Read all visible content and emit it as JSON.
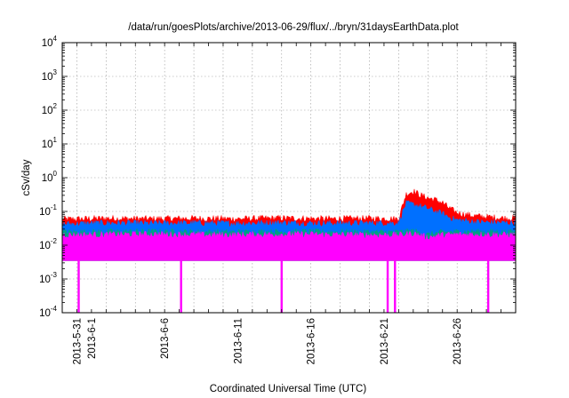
{
  "chart_data": {
    "type": "area",
    "title": "/data/run/goesPlots/archive/2013-06-29/flux/../bryn/31daysEarthData.plot",
    "xlabel": "Coordinated Universal Time (UTC)",
    "ylabel": "cSv/day",
    "y_scale": "log",
    "ylim": [
      0.0001,
      10000
    ],
    "xlim": [
      "2013-05-30",
      "2013-06-30"
    ],
    "grid": true,
    "legend": "none",
    "x_ticks": [
      {
        "date": "2013-05-31",
        "label": "2013-5-31"
      },
      {
        "date": "2013-06-01",
        "label": "2013-6-1"
      },
      {
        "date": "2013-06-06",
        "label": "2013-6-6"
      },
      {
        "date": "2013-06-11",
        "label": "2013-6-11"
      },
      {
        "date": "2013-06-16",
        "label": "2013-6-16"
      },
      {
        "date": "2013-06-21",
        "label": "2013-6-21"
      },
      {
        "date": "2013-06-26",
        "label": "2013-6-26"
      }
    ],
    "y_ticks": [
      {
        "value": 0.0001,
        "base": "10",
        "exp": "-4"
      },
      {
        "value": 0.001,
        "base": "10",
        "exp": "-3"
      },
      {
        "value": 0.01,
        "base": "10",
        "exp": "-2"
      },
      {
        "value": 0.1,
        "base": "10",
        "exp": "-1"
      },
      {
        "value": 1,
        "base": "10",
        "exp": "0"
      },
      {
        "value": 10,
        "base": "10",
        "exp": "1"
      },
      {
        "value": 100,
        "base": "10",
        "exp": "2"
      },
      {
        "value": 1000,
        "base": "10",
        "exp": "3"
      },
      {
        "value": 10000,
        "base": "10",
        "exp": "4"
      }
    ],
    "series": [
      {
        "color": "#ff0000",
        "points": [
          [
            "2013-05-30",
            0.058
          ],
          [
            "2013-06-02",
            0.062
          ],
          [
            "2013-06-05",
            0.06
          ],
          [
            "2013-06-08",
            0.062
          ],
          [
            "2013-06-11",
            0.06
          ],
          [
            "2013-06-14",
            0.063
          ],
          [
            "2013-06-17",
            0.06
          ],
          [
            "2013-06-20",
            0.062
          ],
          [
            "2013-06-22",
            0.06
          ],
          [
            "2013-06-22T12:00",
            0.32
          ],
          [
            "2013-06-23",
            0.4
          ],
          [
            "2013-06-23T12:00",
            0.3
          ],
          [
            "2013-06-24",
            0.25
          ],
          [
            "2013-06-24T12:00",
            0.22
          ],
          [
            "2013-06-25",
            0.18
          ],
          [
            "2013-06-25T12:00",
            0.12
          ],
          [
            "2013-06-26",
            0.09
          ],
          [
            "2013-06-27",
            0.075
          ],
          [
            "2013-06-28",
            0.068
          ],
          [
            "2013-06-29",
            0.064
          ],
          [
            "2013-06-30",
            0.062
          ]
        ]
      },
      {
        "color": "#0070ff",
        "points": [
          [
            "2013-05-30",
            0.042
          ],
          [
            "2013-06-02",
            0.045
          ],
          [
            "2013-06-05",
            0.044
          ],
          [
            "2013-06-08",
            0.045
          ],
          [
            "2013-06-11",
            0.044
          ],
          [
            "2013-06-14",
            0.046
          ],
          [
            "2013-06-17",
            0.044
          ],
          [
            "2013-06-20",
            0.045
          ],
          [
            "2013-06-22",
            0.045
          ],
          [
            "2013-06-22T12:00",
            0.17
          ],
          [
            "2013-06-23",
            0.16
          ],
          [
            "2013-06-23T12:00",
            0.14
          ],
          [
            "2013-06-24",
            0.12
          ],
          [
            "2013-06-24T12:00",
            0.1
          ],
          [
            "2013-06-25",
            0.085
          ],
          [
            "2013-06-25T12:00",
            0.065
          ],
          [
            "2013-06-26",
            0.055
          ],
          [
            "2013-06-27",
            0.05
          ],
          [
            "2013-06-28",
            0.047
          ],
          [
            "2013-06-29",
            0.046
          ],
          [
            "2013-06-30",
            0.045
          ]
        ]
      },
      {
        "color": "#00a080",
        "points": [
          [
            "2013-05-30",
            0.024
          ],
          [
            "2013-06-05",
            0.025
          ],
          [
            "2013-06-10",
            0.024
          ],
          [
            "2013-06-15",
            0.025
          ],
          [
            "2013-06-20",
            0.024
          ],
          [
            "2013-06-22",
            0.024
          ],
          [
            "2013-06-23",
            0.026
          ],
          [
            "2013-06-24",
            0.02
          ],
          [
            "2013-06-25",
            0.024
          ],
          [
            "2013-06-27",
            0.025
          ],
          [
            "2013-06-30",
            0.024
          ]
        ]
      },
      {
        "color": "#ff00ff",
        "points": [
          [
            "2013-05-30",
            0.02
          ],
          [
            "2013-06-05",
            0.021
          ],
          [
            "2013-06-10",
            0.02
          ],
          [
            "2013-06-15",
            0.021
          ],
          [
            "2013-06-20",
            0.02
          ],
          [
            "2013-06-22",
            0.02
          ],
          [
            "2013-06-23",
            0.022
          ],
          [
            "2013-06-24",
            0.017
          ],
          [
            "2013-06-25",
            0.02
          ],
          [
            "2013-06-27",
            0.021
          ],
          [
            "2013-06-30",
            0.02
          ]
        ],
        "floor": 0.0035,
        "drops": [
          "2013-05-31T03:00",
          "2013-06-07T03:00",
          "2013-06-14T00:00",
          "2013-06-21T06:00",
          "2013-06-21T18:00",
          "2013-06-28T03:00"
        ]
      }
    ]
  }
}
